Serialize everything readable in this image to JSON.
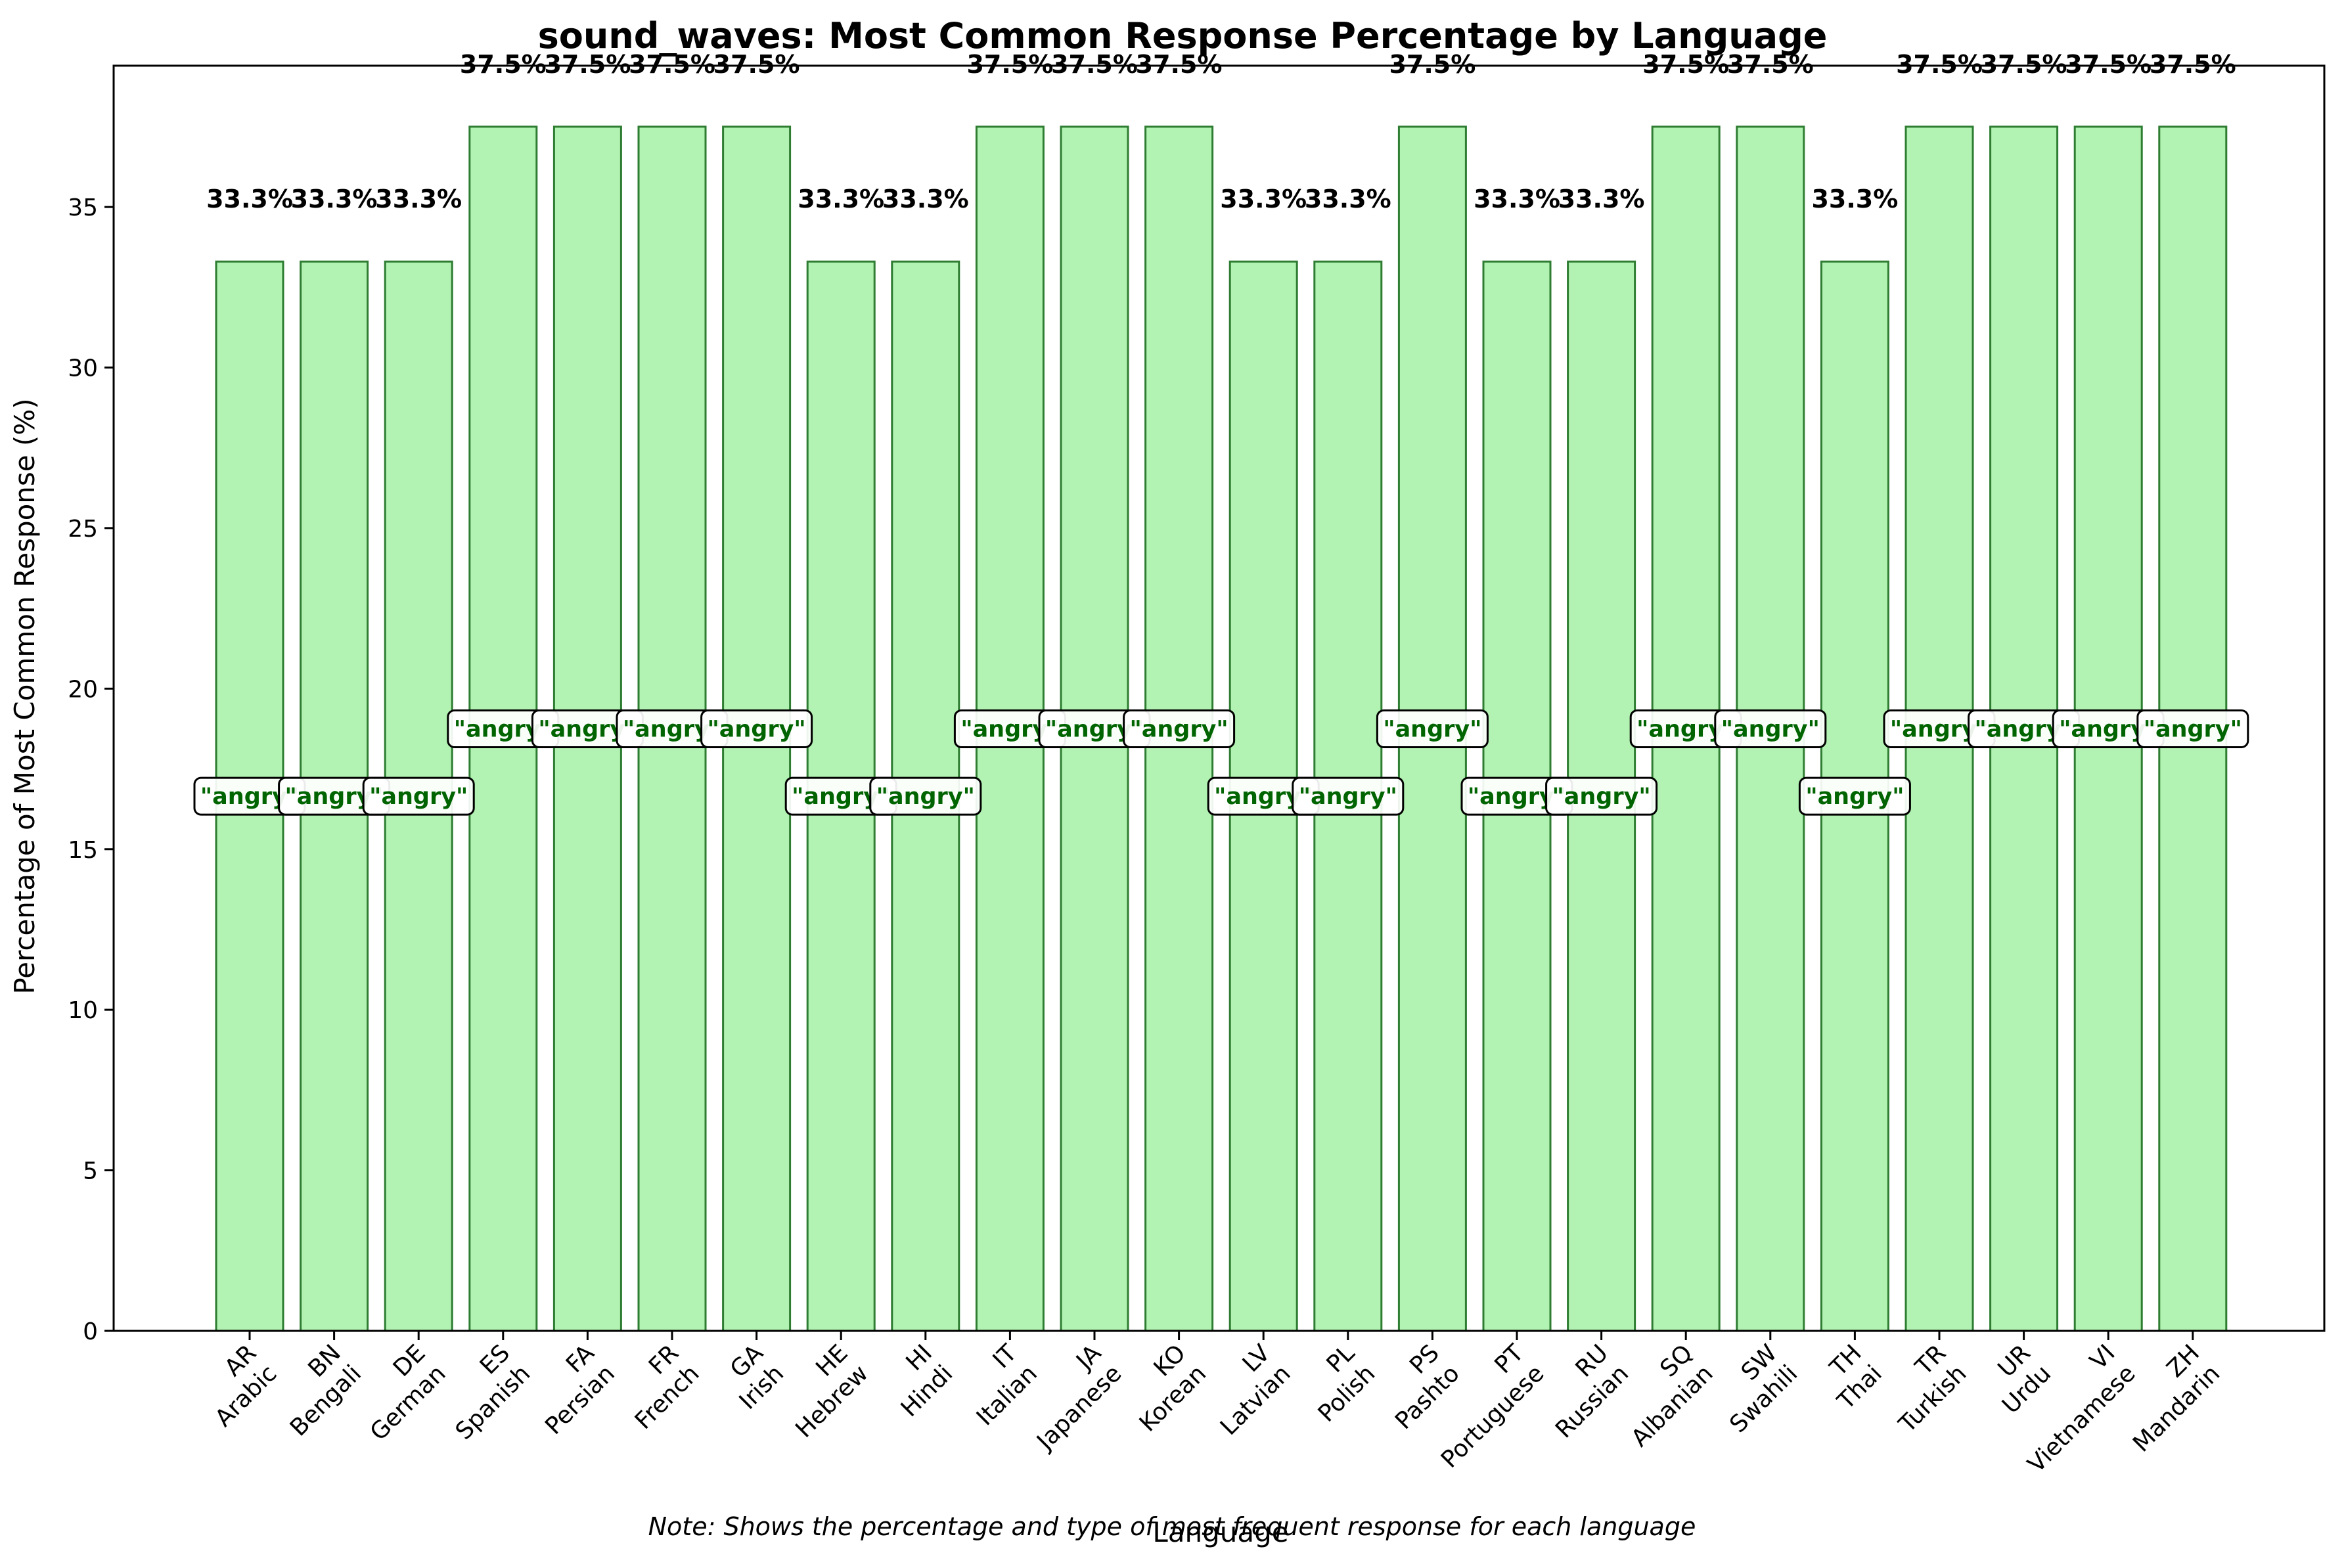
{
  "chart_data": {
    "type": "bar",
    "title": "sound_waves: Most Common Response Percentage by Language",
    "xlabel": "Language",
    "ylabel": "Percentage of Most Common Response (%)",
    "note": "Note: Shows the percentage and type of most frequent response for each language",
    "ylim": [
      0,
      39.4
    ],
    "yticks": [
      0,
      5,
      10,
      15,
      20,
      25,
      30,
      35
    ],
    "grid": false,
    "colors": {
      "bar_fill": "#b2f2b2",
      "bar_edge": "#2e7d32",
      "response_text": "#006400"
    },
    "categories": [
      {
        "code": "AR",
        "name": "Arabic"
      },
      {
        "code": "BN",
        "name": "Bengali"
      },
      {
        "code": "DE",
        "name": "German"
      },
      {
        "code": "ES",
        "name": "Spanish"
      },
      {
        "code": "FA",
        "name": "Persian"
      },
      {
        "code": "FR",
        "name": "French"
      },
      {
        "code": "GA",
        "name": "Irish"
      },
      {
        "code": "HE",
        "name": "Hebrew"
      },
      {
        "code": "HI",
        "name": "Hindi"
      },
      {
        "code": "IT",
        "name": "Italian"
      },
      {
        "code": "JA",
        "name": "Japanese"
      },
      {
        "code": "KO",
        "name": "Korean"
      },
      {
        "code": "LV",
        "name": "Latvian"
      },
      {
        "code": "PL",
        "name": "Polish"
      },
      {
        "code": "PS",
        "name": "Pashto"
      },
      {
        "code": "PT",
        "name": "Portuguese"
      },
      {
        "code": "RU",
        "name": "Russian"
      },
      {
        "code": "SQ",
        "name": "Albanian"
      },
      {
        "code": "SW",
        "name": "Swahili"
      },
      {
        "code": "TH",
        "name": "Thai"
      },
      {
        "code": "TR",
        "name": "Turkish"
      },
      {
        "code": "UR",
        "name": "Urdu"
      },
      {
        "code": "VI",
        "name": "Vietnamese"
      },
      {
        "code": "ZH",
        "name": "Mandarin"
      }
    ],
    "values": [
      33.3,
      33.3,
      33.3,
      37.5,
      37.5,
      37.5,
      37.5,
      33.3,
      33.3,
      37.5,
      37.5,
      37.5,
      33.3,
      33.3,
      37.5,
      33.3,
      33.3,
      37.5,
      37.5,
      33.3,
      37.5,
      37.5,
      37.5,
      37.5
    ],
    "value_labels": [
      "33.3%",
      "33.3%",
      "33.3%",
      "37.5%",
      "37.5%",
      "37.5%",
      "37.5%",
      "33.3%",
      "33.3%",
      "37.5%",
      "37.5%",
      "37.5%",
      "33.3%",
      "33.3%",
      "37.5%",
      "33.3%",
      "33.3%",
      "37.5%",
      "37.5%",
      "33.3%",
      "37.5%",
      "37.5%",
      "37.5%",
      "37.5%"
    ],
    "responses": [
      "\"angry\"",
      "\"angry\"",
      "\"angry\"",
      "\"angry\"",
      "\"angry\"",
      "\"angry\"",
      "\"angry\"",
      "\"angry\"",
      "\"angry\"",
      "\"angry\"",
      "\"angry\"",
      "\"angry\"",
      "\"angry\"",
      "\"angry\"",
      "\"angry\"",
      "\"angry\"",
      "\"angry\"",
      "\"angry\"",
      "\"angry\"",
      "\"angry\"",
      "\"angry\"",
      "\"angry\"",
      "\"angry\"",
      "\"angry\""
    ]
  }
}
